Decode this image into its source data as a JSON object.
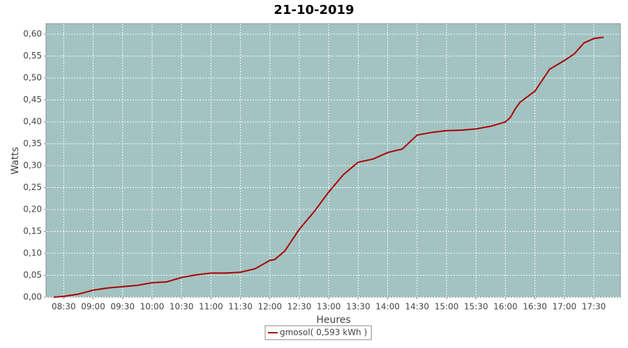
{
  "chart_data": {
    "type": "line",
    "title": "21-10-2019",
    "x_label": "Heures",
    "y_label": "Watts",
    "x": [
      "08:20",
      "08:30",
      "08:45",
      "09:00",
      "09:15",
      "09:30",
      "09:45",
      "10:00",
      "10:15",
      "10:30",
      "10:45",
      "11:00",
      "11:15",
      "11:30",
      "11:45",
      "12:00",
      "12:05",
      "12:15",
      "12:30",
      "12:45",
      "13:00",
      "13:15",
      "13:30",
      "13:45",
      "14:00",
      "14:15",
      "14:30",
      "14:45",
      "15:00",
      "15:15",
      "15:30",
      "15:45",
      "16:00",
      "16:05",
      "16:10",
      "16:15",
      "16:30",
      "16:45",
      "17:00",
      "17:10",
      "17:20",
      "17:30",
      "17:40"
    ],
    "series": [
      {
        "name": "gmosol( 0,593 kWh )",
        "color": "#aa0000",
        "values": [
          0.0,
          0.002,
          0.007,
          0.016,
          0.021,
          0.024,
          0.027,
          0.033,
          0.035,
          0.045,
          0.051,
          0.055,
          0.055,
          0.057,
          0.065,
          0.084,
          0.086,
          0.105,
          0.155,
          0.195,
          0.24,
          0.28,
          0.308,
          0.315,
          0.33,
          0.338,
          0.37,
          0.376,
          0.38,
          0.381,
          0.384,
          0.39,
          0.4,
          0.41,
          0.43,
          0.445,
          0.47,
          0.52,
          0.54,
          0.555,
          0.58,
          0.59,
          0.593
        ]
      }
    ],
    "xlim": [
      "08:12",
      "17:57"
    ],
    "xticks": [
      "08:30",
      "09:00",
      "09:30",
      "10:00",
      "10:30",
      "11:00",
      "11:30",
      "12:00",
      "12:30",
      "13:00",
      "13:30",
      "14:00",
      "14:30",
      "15:00",
      "15:30",
      "16:00",
      "16:30",
      "17:00",
      "17:30"
    ],
    "ylim": [
      0,
      0.624
    ],
    "yticks": [
      {
        "value": 0,
        "label": "0,00"
      },
      {
        "value": 0.05,
        "label": "0,05"
      },
      {
        "value": 0.1,
        "label": "0,10"
      },
      {
        "value": 0.15,
        "label": "0,15"
      },
      {
        "value": 0.2,
        "label": "0,20"
      },
      {
        "value": 0.25,
        "label": "0,25"
      },
      {
        "value": 0.3,
        "label": "0,30"
      },
      {
        "value": 0.35,
        "label": "0,35"
      },
      {
        "value": 0.4,
        "label": "0,40"
      },
      {
        "value": 0.45,
        "label": "0,45"
      },
      {
        "value": 0.5,
        "label": "0,50"
      },
      {
        "value": 0.55,
        "label": "0,55"
      },
      {
        "value": 0.6,
        "label": "0,60"
      }
    ],
    "grid": true,
    "background": "#a2c3c2",
    "legend": "bottom"
  }
}
